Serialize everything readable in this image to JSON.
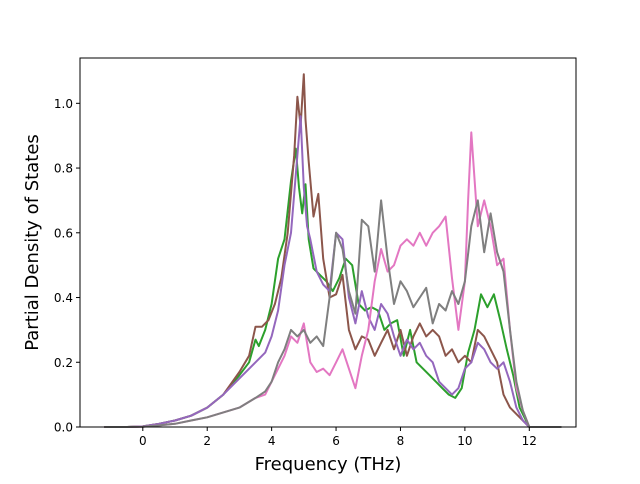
{
  "chart_data": {
    "type": "line",
    "title": "",
    "xlabel": "Frequency (THz)",
    "ylabel": "Partial Density of States",
    "xlim": [
      -1.95,
      13.45
    ],
    "ylim": [
      0.0,
      1.14
    ],
    "xticks": [
      0,
      2,
      4,
      6,
      8,
      10,
      12
    ],
    "yticks": [
      0.0,
      0.2,
      0.4,
      0.6,
      0.8,
      1.0
    ],
    "xtick_labels": [
      "0",
      "2",
      "4",
      "6",
      "8",
      "10",
      "12"
    ],
    "ytick_labels": [
      "0.0",
      "0.2",
      "0.4",
      "0.6",
      "0.8",
      "1.0"
    ],
    "grid": false,
    "legend": "none",
    "series": [
      {
        "color": "#2ca02c",
        "x": [
          -1.2,
          -0.5,
          0,
          0.5,
          1.0,
          1.5,
          2.0,
          2.5,
          3.0,
          3.3,
          3.5,
          3.6,
          3.8,
          4.0,
          4.2,
          4.4,
          4.6,
          4.75,
          4.85,
          4.95,
          5.05,
          5.15,
          5.3,
          5.5,
          5.7,
          5.9,
          6.1,
          6.3,
          6.5,
          6.7,
          6.9,
          7.1,
          7.3,
          7.5,
          7.7,
          7.9,
          8.1,
          8.3,
          8.5,
          8.7,
          8.9,
          9.1,
          9.3,
          9.5,
          9.7,
          9.9,
          10.1,
          10.3,
          10.5,
          10.7,
          10.9,
          11.1,
          11.3,
          11.5,
          11.7,
          12.0,
          13.0
        ],
        "y": [
          0,
          0,
          0.002,
          0.01,
          0.02,
          0.035,
          0.06,
          0.1,
          0.16,
          0.2,
          0.27,
          0.25,
          0.3,
          0.38,
          0.52,
          0.58,
          0.76,
          0.86,
          0.74,
          0.66,
          0.75,
          0.58,
          0.49,
          0.47,
          0.45,
          0.42,
          0.46,
          0.52,
          0.5,
          0.38,
          0.36,
          0.37,
          0.36,
          0.3,
          0.32,
          0.33,
          0.22,
          0.3,
          0.2,
          0.18,
          0.16,
          0.14,
          0.12,
          0.1,
          0.09,
          0.12,
          0.23,
          0.3,
          0.41,
          0.37,
          0.41,
          0.33,
          0.24,
          0.16,
          0.06,
          0,
          0
        ]
      },
      {
        "color": "#8c564b",
        "x": [
          -1.2,
          -0.5,
          0,
          0.5,
          1.0,
          1.5,
          2.0,
          2.5,
          3.0,
          3.3,
          3.5,
          3.7,
          3.9,
          4.1,
          4.3,
          4.5,
          4.7,
          4.8,
          4.9,
          5.0,
          5.05,
          5.15,
          5.3,
          5.45,
          5.6,
          5.8,
          6.0,
          6.2,
          6.4,
          6.6,
          6.8,
          7.0,
          7.2,
          7.4,
          7.6,
          7.8,
          8.0,
          8.2,
          8.4,
          8.6,
          8.8,
          9.0,
          9.2,
          9.4,
          9.6,
          9.8,
          10.0,
          10.2,
          10.4,
          10.6,
          10.8,
          11.0,
          11.2,
          11.4,
          11.6,
          11.8,
          12.0,
          13.0
        ],
        "y": [
          0,
          0,
          0.002,
          0.01,
          0.02,
          0.035,
          0.06,
          0.1,
          0.17,
          0.22,
          0.31,
          0.31,
          0.33,
          0.38,
          0.46,
          0.6,
          0.84,
          1.02,
          0.93,
          1.09,
          0.95,
          0.82,
          0.65,
          0.72,
          0.52,
          0.4,
          0.41,
          0.47,
          0.3,
          0.24,
          0.28,
          0.27,
          0.22,
          0.26,
          0.3,
          0.24,
          0.3,
          0.22,
          0.28,
          0.32,
          0.28,
          0.3,
          0.28,
          0.22,
          0.24,
          0.2,
          0.22,
          0.2,
          0.3,
          0.28,
          0.24,
          0.2,
          0.1,
          0.06,
          0.04,
          0.02,
          0,
          0
        ]
      },
      {
        "color": "#9467bd",
        "x": [
          -1.2,
          -0.5,
          0,
          0.5,
          1.0,
          1.5,
          2.0,
          2.5,
          3.0,
          3.5,
          3.8,
          4.0,
          4.2,
          4.4,
          4.6,
          4.8,
          4.9,
          5.0,
          5.1,
          5.2,
          5.4,
          5.6,
          5.8,
          6.0,
          6.2,
          6.4,
          6.6,
          6.8,
          7.0,
          7.2,
          7.4,
          7.6,
          7.8,
          8.0,
          8.2,
          8.4,
          8.6,
          8.8,
          9.0,
          9.2,
          9.4,
          9.6,
          9.8,
          10.0,
          10.2,
          10.4,
          10.6,
          10.8,
          11.0,
          11.2,
          11.4,
          11.6,
          11.8,
          12.0,
          13.0
        ],
        "y": [
          0,
          0,
          0.002,
          0.01,
          0.02,
          0.035,
          0.06,
          0.1,
          0.15,
          0.2,
          0.23,
          0.28,
          0.36,
          0.5,
          0.6,
          0.84,
          0.96,
          0.74,
          0.62,
          0.58,
          0.48,
          0.44,
          0.42,
          0.6,
          0.58,
          0.4,
          0.32,
          0.42,
          0.34,
          0.3,
          0.38,
          0.35,
          0.28,
          0.22,
          0.27,
          0.24,
          0.26,
          0.22,
          0.2,
          0.14,
          0.12,
          0.1,
          0.12,
          0.18,
          0.2,
          0.26,
          0.24,
          0.2,
          0.18,
          0.2,
          0.14,
          0.06,
          0.02,
          0,
          0
        ]
      },
      {
        "color": "#e377c2",
        "x": [
          -1.2,
          -0.5,
          0,
          0.5,
          1.0,
          1.5,
          2.0,
          2.5,
          3.0,
          3.5,
          3.8,
          4.0,
          4.2,
          4.4,
          4.6,
          4.8,
          5.0,
          5.2,
          5.4,
          5.6,
          5.8,
          6.0,
          6.2,
          6.4,
          6.6,
          6.8,
          7.0,
          7.2,
          7.4,
          7.6,
          7.8,
          8.0,
          8.2,
          8.4,
          8.6,
          8.8,
          9.0,
          9.2,
          9.4,
          9.6,
          9.8,
          10.0,
          10.1,
          10.2,
          10.4,
          10.6,
          10.8,
          11.0,
          11.2,
          11.4,
          11.6,
          11.8,
          12.0,
          13.0
        ],
        "y": [
          0,
          0,
          0.001,
          0.005,
          0.01,
          0.02,
          0.03,
          0.045,
          0.06,
          0.09,
          0.1,
          0.14,
          0.18,
          0.22,
          0.28,
          0.26,
          0.32,
          0.2,
          0.17,
          0.18,
          0.16,
          0.2,
          0.24,
          0.18,
          0.12,
          0.22,
          0.3,
          0.45,
          0.55,
          0.48,
          0.5,
          0.56,
          0.58,
          0.56,
          0.6,
          0.56,
          0.6,
          0.62,
          0.65,
          0.46,
          0.3,
          0.45,
          0.7,
          0.91,
          0.62,
          0.7,
          0.62,
          0.5,
          0.52,
          0.3,
          0.12,
          0.05,
          0,
          0
        ]
      },
      {
        "color": "#7f7f7f",
        "x": [
          -1.2,
          -0.5,
          0,
          0.5,
          1.0,
          1.5,
          2.0,
          2.5,
          3.0,
          3.5,
          3.8,
          4.0,
          4.2,
          4.4,
          4.6,
          4.8,
          5.0,
          5.2,
          5.4,
          5.6,
          5.8,
          6.0,
          6.2,
          6.4,
          6.6,
          6.8,
          7.0,
          7.2,
          7.4,
          7.6,
          7.8,
          8.0,
          8.2,
          8.4,
          8.6,
          8.8,
          9.0,
          9.2,
          9.4,
          9.6,
          9.8,
          10.0,
          10.2,
          10.4,
          10.6,
          10.8,
          11.0,
          11.2,
          11.4,
          11.6,
          11.8,
          12.0,
          13.0
        ],
        "y": [
          0,
          0,
          0.001,
          0.005,
          0.01,
          0.02,
          0.03,
          0.045,
          0.06,
          0.09,
          0.11,
          0.14,
          0.2,
          0.24,
          0.3,
          0.28,
          0.3,
          0.26,
          0.28,
          0.25,
          0.4,
          0.6,
          0.55,
          0.42,
          0.35,
          0.64,
          0.62,
          0.48,
          0.7,
          0.52,
          0.38,
          0.45,
          0.42,
          0.37,
          0.4,
          0.43,
          0.32,
          0.38,
          0.36,
          0.42,
          0.38,
          0.45,
          0.62,
          0.7,
          0.54,
          0.66,
          0.54,
          0.48,
          0.3,
          0.14,
          0.05,
          0,
          0
        ]
      }
    ]
  }
}
